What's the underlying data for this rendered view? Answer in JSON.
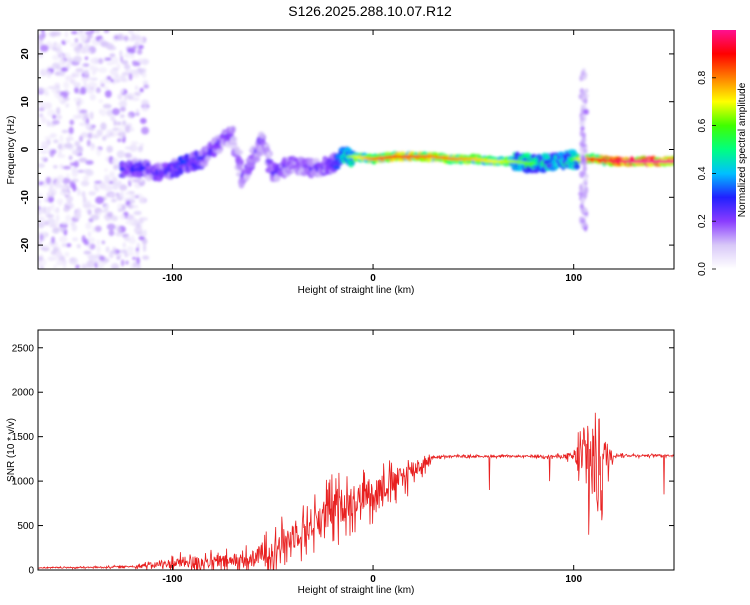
{
  "title": "S126.2025.288.10.07.R12",
  "chart_data": [
    {
      "type": "heatmap",
      "xlabel": "Height of straight line (km)",
      "ylabel": "Frequency (Hz)",
      "xlim": [
        -167,
        150
      ],
      "ylim": [
        -25,
        25
      ],
      "xticks": [
        -100,
        0,
        100
      ],
      "yticks": [
        -20,
        -10,
        0,
        10,
        20
      ],
      "colorbar": {
        "label": "Normalized spectral amplitude",
        "range": [
          0,
          1
        ],
        "ticks": [
          0.0,
          0.2,
          0.4,
          0.6,
          0.8
        ],
        "palette": [
          "#ffffff",
          "#d8c8f8",
          "#8a3cff",
          "#2020ff",
          "#00c0ff",
          "#00ff80",
          "#40ff00",
          "#ffff00",
          "#ff8000",
          "#ff0000",
          "#ff1090"
        ]
      },
      "ridge": {
        "x": [
          -125,
          -115,
          -105,
          -95,
          -85,
          -75,
          -70,
          -65,
          -60,
          -55,
          -50,
          -40,
          -30,
          -20,
          -15,
          -10,
          0,
          10,
          20,
          30,
          40,
          50,
          60,
          70,
          80,
          90,
          95,
          100,
          105,
          110,
          120,
          130,
          140,
          150
        ],
        "freq": [
          -4,
          -4,
          -5,
          -3,
          -2,
          2,
          3,
          -6,
          -2,
          2,
          -5,
          -3,
          -4,
          -3,
          -1.5,
          -1.5,
          -2,
          -1.5,
          -1.5,
          -1.5,
          -2,
          -2,
          -2.5,
          -2.5,
          -3,
          -2.5,
          -2,
          -2,
          -2,
          -2,
          -2.5,
          -2.5,
          -2.5,
          -2.5
        ],
        "amplitude": [
          0.3,
          0.3,
          0.3,
          0.35,
          0.3,
          0.25,
          0.25,
          0.25,
          0.25,
          0.25,
          0.25,
          0.25,
          0.25,
          0.3,
          0.5,
          0.6,
          0.75,
          0.8,
          0.8,
          0.75,
          0.75,
          0.7,
          0.65,
          0.6,
          0.55,
          0.5,
          0.5,
          0.55,
          0.7,
          0.85,
          0.9,
          0.95,
          0.95,
          0.95
        ]
      },
      "noise_region": [
        -167,
        -125
      ],
      "spike_x": 105
    },
    {
      "type": "line",
      "xlabel": "Height of straight line (km)",
      "ylabel": "SNR (10 * v/v)",
      "xlim": [
        -167,
        150
      ],
      "ylim": [
        0,
        2700
      ],
      "xticks": [
        -100,
        0,
        100
      ],
      "yticks": [
        0,
        500,
        1000,
        1500,
        2000,
        2500
      ],
      "color": "#e82020",
      "envelope": {
        "x": [
          -167,
          -140,
          -120,
          -110,
          -100,
          -90,
          -80,
          -70,
          -60,
          -50,
          -40,
          -30,
          -20,
          -10,
          0,
          10,
          20,
          25,
          30,
          40,
          60,
          80,
          95,
          100,
          105,
          110,
          112,
          115,
          120,
          150
        ],
        "base": [
          25,
          30,
          40,
          60,
          80,
          100,
          100,
          100,
          130,
          250,
          400,
          550,
          700,
          800,
          900,
          1000,
          1150,
          1200,
          1270,
          1280,
          1280,
          1280,
          1280,
          1280,
          1280,
          1280,
          1280,
          1300,
          1290,
          1290
        ],
        "noise": [
          10,
          15,
          20,
          60,
          120,
          150,
          150,
          180,
          200,
          300,
          350,
          400,
          450,
          400,
          350,
          300,
          250,
          150,
          30,
          20,
          20,
          20,
          40,
          100,
          800,
          1200,
          1300,
          500,
          30,
          20
        ]
      },
      "dips": [
        {
          "x": 58,
          "value": 900
        },
        {
          "x": 88,
          "value": 1000
        },
        {
          "x": 145,
          "value": 850
        }
      ]
    }
  ]
}
